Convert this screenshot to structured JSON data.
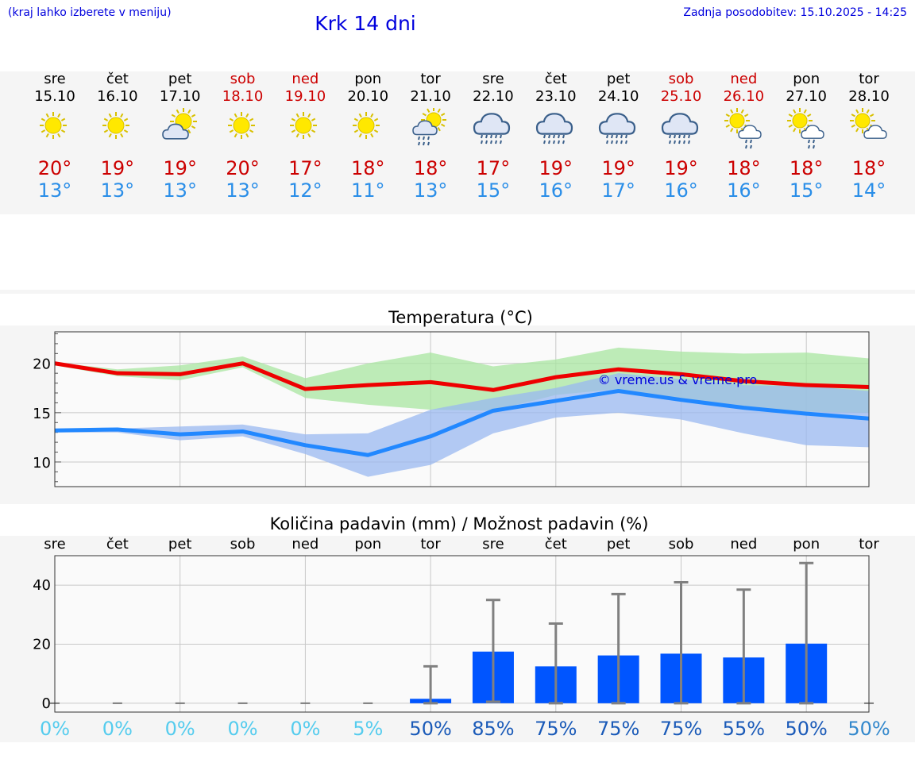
{
  "header": {
    "hint": "(kraj lahko izberete v meniju)",
    "title": "Krk 14 dni",
    "updated": "Zadnja posodobitev: 15.10.2025 - 14:25"
  },
  "colors": {
    "weekend": "#cc0000",
    "max": "#cc0000",
    "min": "#2a8ee8",
    "rain": "#0055ff"
  },
  "days": [
    {
      "name": "sre",
      "date": "15.10",
      "weekend": false,
      "icon": "sun-icon",
      "max": "20°",
      "min": "13°"
    },
    {
      "name": "čet",
      "date": "16.10",
      "weekend": false,
      "icon": "sun-icon",
      "max": "19°",
      "min": "13°"
    },
    {
      "name": "pet",
      "date": "17.10",
      "weekend": false,
      "icon": "sun-cloud-icon",
      "max": "19°",
      "min": "13°"
    },
    {
      "name": "sob",
      "date": "18.10",
      "weekend": true,
      "icon": "sun-icon",
      "max": "20°",
      "min": "13°"
    },
    {
      "name": "ned",
      "date": "19.10",
      "weekend": true,
      "icon": "sun-icon",
      "max": "17°",
      "min": "12°"
    },
    {
      "name": "pon",
      "date": "20.10",
      "weekend": false,
      "icon": "sun-icon",
      "max": "18°",
      "min": "11°"
    },
    {
      "name": "tor",
      "date": "21.10",
      "weekend": false,
      "icon": "sun-cloud-rain-icon",
      "max": "18°",
      "min": "13°"
    },
    {
      "name": "sre",
      "date": "22.10",
      "weekend": false,
      "icon": "cloud-rain-icon",
      "max": "17°",
      "min": "15°"
    },
    {
      "name": "čet",
      "date": "23.10",
      "weekend": false,
      "icon": "cloud-rain-icon",
      "max": "19°",
      "min": "16°"
    },
    {
      "name": "pet",
      "date": "24.10",
      "weekend": false,
      "icon": "cloud-rain-icon",
      "max": "19°",
      "min": "17°"
    },
    {
      "name": "sob",
      "date": "25.10",
      "weekend": true,
      "icon": "cloud-rain-icon",
      "max": "19°",
      "min": "16°"
    },
    {
      "name": "ned",
      "date": "26.10",
      "weekend": true,
      "icon": "sun-small-cloud-rain-icon",
      "max": "18°",
      "min": "16°"
    },
    {
      "name": "pon",
      "date": "27.10",
      "weekend": false,
      "icon": "sun-small-cloud-rain-icon",
      "max": "18°",
      "min": "15°"
    },
    {
      "name": "tor",
      "date": "28.10",
      "weekend": false,
      "icon": "sun-small-cloud-icon",
      "max": "18°",
      "min": "14°"
    }
  ],
  "chart_data": [
    {
      "type": "line",
      "title": "Temperatura (°C)",
      "watermark": "© vreme.us & vreme.pro",
      "ylim": [
        7.5,
        23.2
      ],
      "yticks": [
        10,
        15,
        20
      ],
      "x": [
        0,
        1,
        2,
        3,
        4,
        5,
        6,
        7,
        8,
        9,
        10,
        11,
        12,
        13
      ],
      "series": [
        {
          "name": "max",
          "color": "#ee0000",
          "values": [
            20.0,
            19.0,
            18.9,
            20.0,
            17.4,
            17.8,
            18.1,
            17.3,
            18.6,
            19.4,
            18.9,
            18.2,
            17.8,
            17.6
          ]
        },
        {
          "name": "min",
          "color": "#2288ff",
          "values": [
            13.2,
            13.3,
            12.8,
            13.1,
            11.7,
            10.7,
            12.6,
            15.2,
            16.2,
            17.2,
            16.3,
            15.5,
            14.9,
            14.4
          ]
        }
      ],
      "bands": [
        {
          "name": "max-range",
          "color": "#a8e6a0",
          "upper": [
            20.1,
            19.4,
            19.8,
            20.7,
            18.5,
            20.0,
            21.1,
            19.7,
            20.4,
            21.6,
            21.2,
            21.0,
            21.1,
            20.5
          ],
          "lower": [
            19.8,
            18.7,
            18.3,
            19.6,
            16.5,
            15.8,
            15.3,
            15.2,
            16.8,
            17.4,
            16.2,
            15.4,
            15.1,
            15.0
          ]
        },
        {
          "name": "min-range",
          "color": "#9ab8f0",
          "upper": [
            13.3,
            13.4,
            13.6,
            13.8,
            12.8,
            12.9,
            15.3,
            16.5,
            17.5,
            19.0,
            18.4,
            17.8,
            17.7,
            17.2
          ],
          "lower": [
            13.0,
            13.0,
            12.2,
            12.6,
            10.8,
            8.5,
            9.7,
            12.9,
            14.5,
            15.0,
            14.3,
            12.9,
            11.7,
            11.5
          ]
        }
      ]
    },
    {
      "type": "bar",
      "title": "Količina padavin (mm) / Možnost padavin (%)",
      "categories": [
        "sre",
        "čet",
        "pet",
        "sob",
        "ned",
        "pon",
        "tor",
        "sre",
        "čet",
        "pet",
        "sob",
        "ned",
        "pon",
        "tor"
      ],
      "ylim": [
        -3,
        50
      ],
      "yticks": [
        0,
        20,
        40
      ],
      "values": [
        0,
        0,
        0,
        0,
        0,
        0,
        1.5,
        17.5,
        12.5,
        16.2,
        16.8,
        15.5,
        20.2,
        0
      ],
      "error_upper": [
        0,
        0,
        0,
        0,
        0,
        0,
        12.5,
        35,
        27,
        37,
        41,
        38.5,
        47.5,
        0
      ],
      "error_lower": [
        0,
        0,
        0,
        0,
        0,
        0,
        0,
        0.5,
        0,
        0,
        0,
        0,
        0,
        0
      ],
      "probability": [
        "0%",
        "0%",
        "0%",
        "0%",
        "0%",
        "5%",
        "50%",
        "85%",
        "75%",
        "75%",
        "75%",
        "55%",
        "50%",
        "50%"
      ],
      "probability_colors": [
        "#55ccee",
        "#55ccee",
        "#55ccee",
        "#55ccee",
        "#55ccee",
        "#55ccee",
        "#1a5ab8",
        "#1a5ab8",
        "#1a5ab8",
        "#1a5ab8",
        "#1a5ab8",
        "#1a5ab8",
        "#1a5ab8",
        "#3388cc"
      ]
    }
  ]
}
